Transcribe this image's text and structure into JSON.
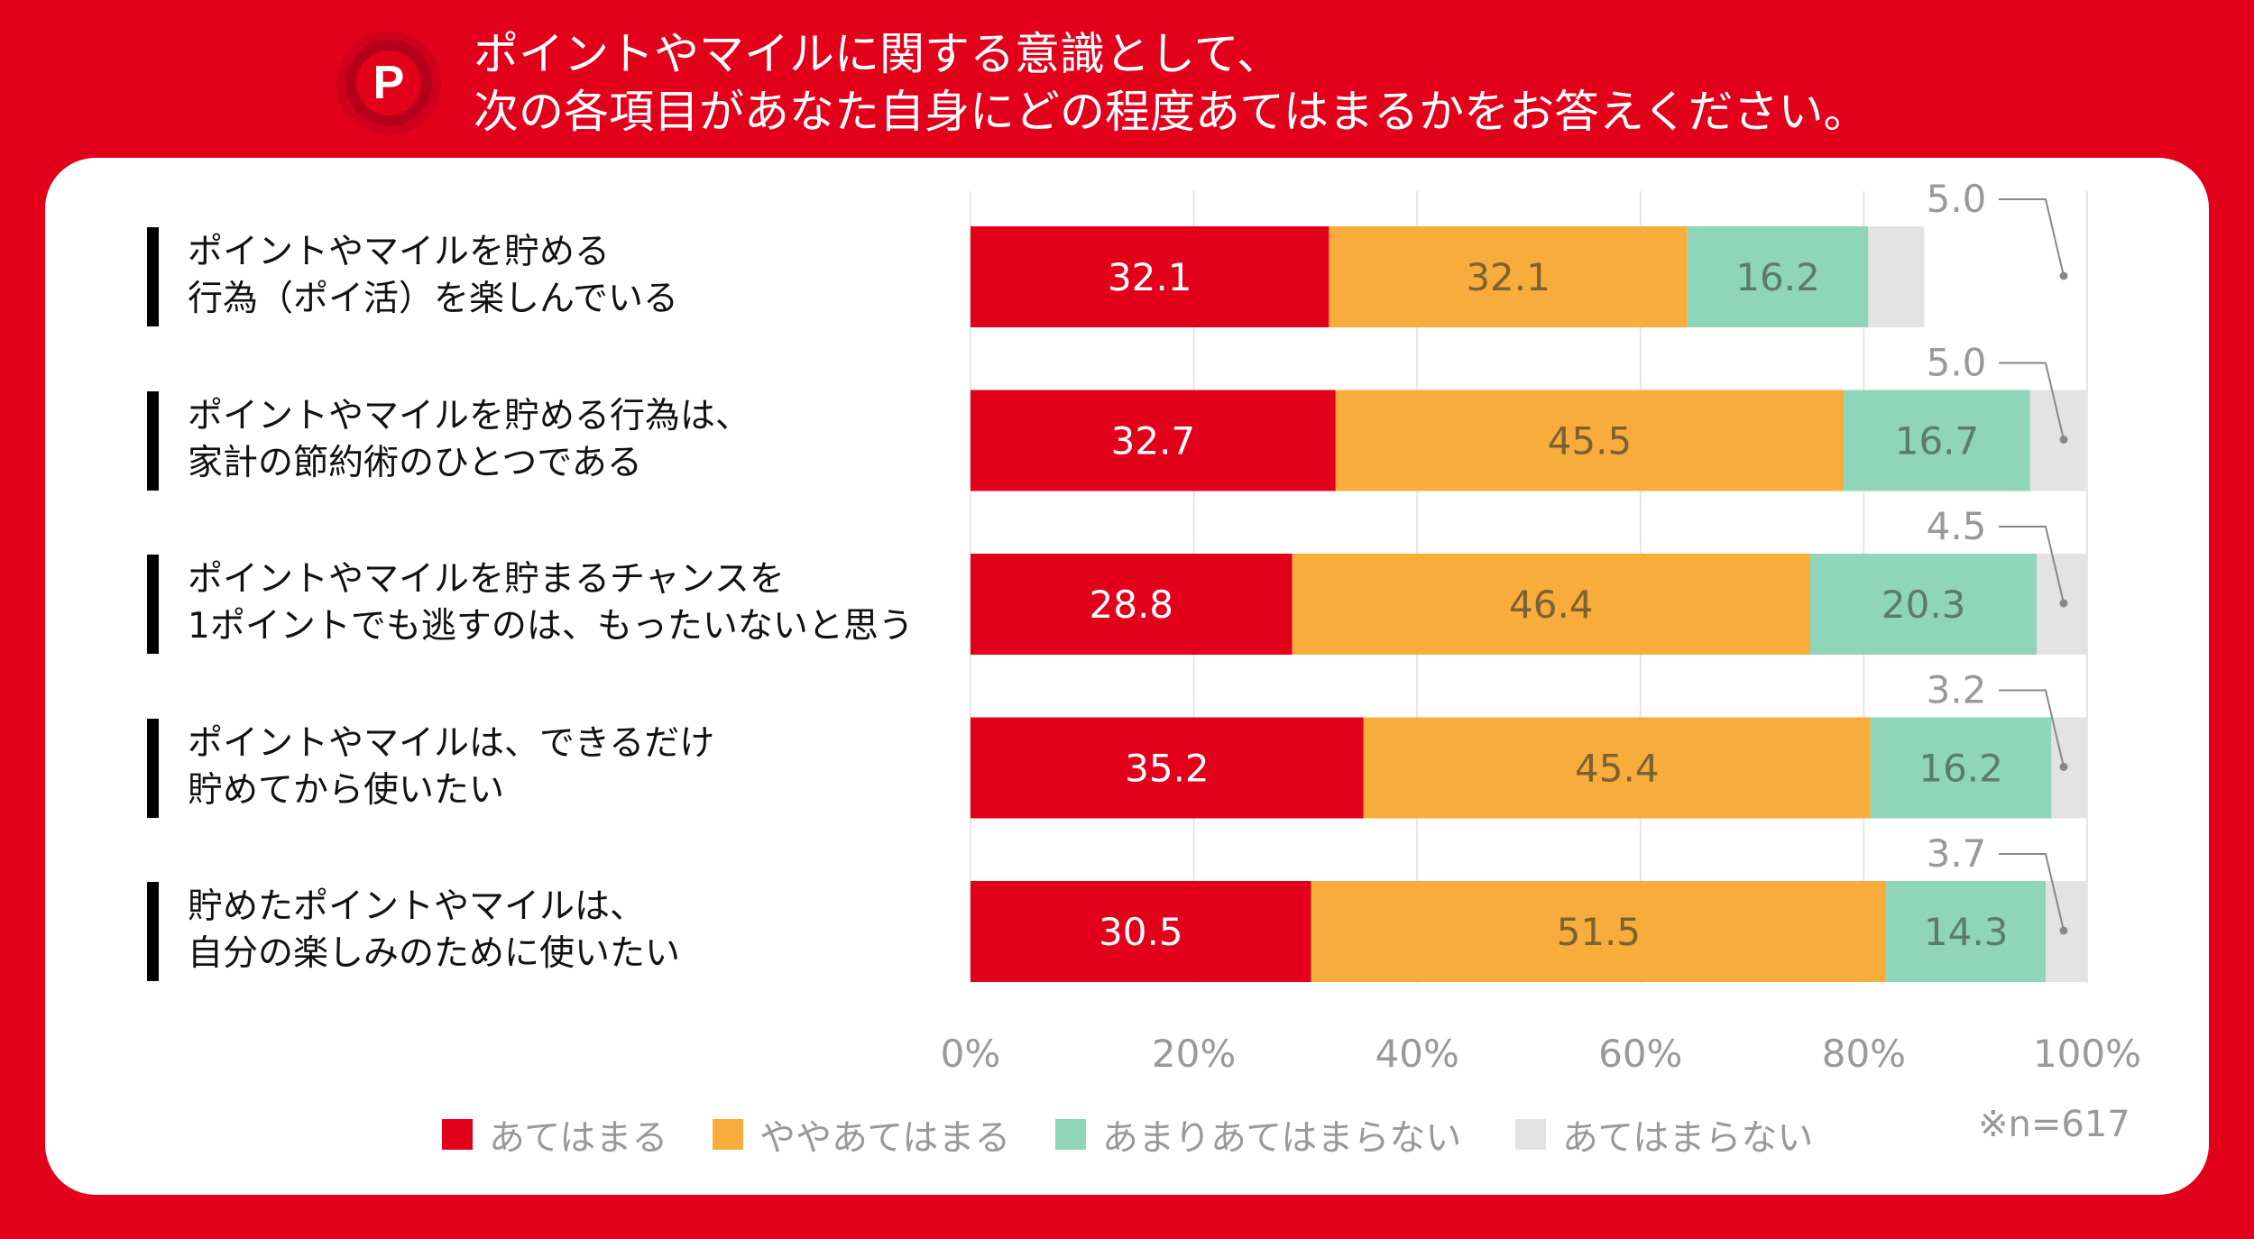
{
  "header": {
    "badge_letter": "P",
    "title_line1": "ポイントやマイルに関する意識として、",
    "title_line2": "次の各項目があなた自身にどの程度あてはまるかをお答えください。"
  },
  "colors": {
    "background": "#e3001b",
    "series": [
      "#e3001b",
      "#f8ac3b",
      "#8ed5b9",
      "#e3e3e3"
    ]
  },
  "sample_note": "※n=617",
  "chart_data": {
    "type": "bar",
    "orientation": "horizontal-stacked",
    "categories": [
      [
        "ポイントやマイルを貯める",
        "行為（ポイ活）を楽しんでいる"
      ],
      [
        "ポイントやマイルを貯める行為は、",
        "家計の節約術のひとつである"
      ],
      [
        "ポイントやマイルを貯まるチャンスを",
        "1ポイントでも逃すのは、もったいないと思う"
      ],
      [
        "ポイントやマイルは、できるだけ",
        "貯めてから使いたい"
      ],
      [
        "貯めたポイントやマイルは、",
        "自分の楽しみのために使いたい"
      ]
    ],
    "series": [
      {
        "name": "あてはまる",
        "values": [
          32.1,
          32.7,
          28.8,
          35.2,
          30.5
        ]
      },
      {
        "name": "ややあてはまる",
        "values": [
          32.1,
          45.5,
          46.4,
          45.4,
          51.5
        ]
      },
      {
        "name": "あまりあてはまらない",
        "values": [
          16.2,
          16.7,
          20.3,
          16.2,
          14.3
        ]
      },
      {
        "name": "あてはまらない",
        "values": [
          5.0,
          5.0,
          4.5,
          3.2,
          3.7
        ]
      }
    ],
    "xlim": [
      0,
      100
    ],
    "ticks": [
      "0%",
      "20%",
      "40%",
      "60%",
      "80%",
      "100%"
    ],
    "legend_position": "bottom",
    "grid": true
  }
}
